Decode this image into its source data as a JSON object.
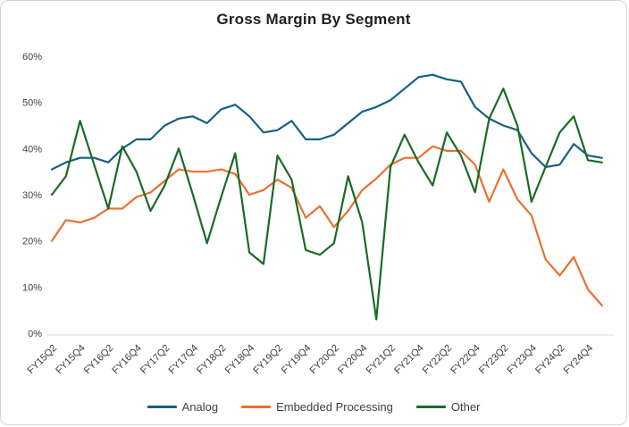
{
  "title": "Gross Margin By Segment",
  "legend": {
    "items": [
      {
        "label": "Analog",
        "color": "#156082"
      },
      {
        "label": "Embedded Processing",
        "color": "#E97132"
      },
      {
        "label": "Other",
        "color": "#196B24"
      }
    ]
  },
  "colors": {
    "axis_line": "#D9D9D9",
    "tick_text": "#404040",
    "title_text": "#1F1F1F",
    "background": "#FFFFFF",
    "border": "#D6D6D6"
  },
  "chart_data": {
    "type": "line",
    "title": "Gross Margin By Segment",
    "xlabel": "",
    "ylabel": "",
    "ylim": [
      0,
      60
    ],
    "y_tick_values": [
      0,
      10,
      20,
      30,
      40,
      50,
      60
    ],
    "y_tick_labels": [
      "0%",
      "10%",
      "20%",
      "30%",
      "40%",
      "50%",
      "60%"
    ],
    "grid": "off",
    "legend_position": "bottom",
    "x": [
      "FY15Q2",
      "FY15Q3",
      "FY15Q4",
      "FY16Q1",
      "FY16Q2",
      "FY16Q3",
      "FY16Q4",
      "FY17Q1",
      "FY17Q2",
      "FY17Q3",
      "FY17Q4",
      "FY18Q1",
      "FY18Q2",
      "FY18Q3",
      "FY18Q4",
      "FY19Q1",
      "FY19Q2",
      "FY19Q3",
      "FY19Q4",
      "FY20Q1",
      "FY20Q2",
      "FY20Q3",
      "FY20Q4",
      "FY21Q1",
      "FY21Q2",
      "FY21Q3",
      "FY21Q4",
      "FY22Q1",
      "FY22Q2",
      "FY22Q3",
      "FY22Q4",
      "FY23Q1",
      "FY23Q2",
      "FY23Q3",
      "FY23Q4",
      "FY24Q1",
      "FY24Q2",
      "FY24Q3",
      "FY24Q4",
      "FY25Q1"
    ],
    "x_axis_tick_labels": [
      "FY15Q2",
      "FY15Q4",
      "FY16Q2",
      "FY16Q4",
      "FY17Q2",
      "FY17Q4",
      "FY18Q2",
      "FY18Q4",
      "FY19Q2",
      "FY19Q4",
      "FY20Q2",
      "FY20Q4",
      "FY21Q2",
      "FY21Q4",
      "FY22Q2",
      "FY22Q4",
      "FY23Q2",
      "FY23Q4",
      "FY24Q2",
      "FY24Q4"
    ],
    "series": [
      {
        "name": "Analog",
        "color": "#156082",
        "values": [
          35.5,
          37,
          38,
          38,
          37,
          40,
          42,
          42,
          45,
          46.5,
          47,
          45.5,
          48.5,
          49.5,
          47,
          43.5,
          44,
          46,
          42,
          42,
          43,
          45.5,
          48,
          49,
          50.5,
          53,
          55.5,
          56,
          55,
          54.5,
          49,
          46.5,
          45,
          44,
          39,
          36,
          36.5,
          41,
          38.5,
          38
        ]
      },
      {
        "name": "Embedded Processing",
        "color": "#E97132",
        "values": [
          20,
          24.5,
          24,
          25,
          27,
          27,
          29.5,
          30.5,
          33,
          35.5,
          35,
          35,
          35.5,
          34.5,
          30,
          31,
          33.3,
          31.5,
          25,
          27.5,
          23,
          26.5,
          31,
          33.5,
          36.5,
          38,
          38,
          40.5,
          39.5,
          39.5,
          36.5,
          28.5,
          35.5,
          29,
          25.5,
          16,
          12.5,
          16.5,
          9.5,
          6
        ]
      },
      {
        "name": "Other",
        "color": "#196B24",
        "values": [
          30,
          34,
          46,
          36.5,
          27,
          40.5,
          35,
          26.5,
          32,
          40,
          30,
          19.5,
          29.5,
          39,
          17.5,
          15,
          38.5,
          33.3,
          18,
          17,
          19.5,
          34,
          24,
          3,
          36,
          43,
          37,
          32,
          43.5,
          38.5,
          30.5,
          46.5,
          53,
          45,
          28.5,
          36,
          43.5,
          47,
          37.5,
          37
        ]
      }
    ]
  }
}
